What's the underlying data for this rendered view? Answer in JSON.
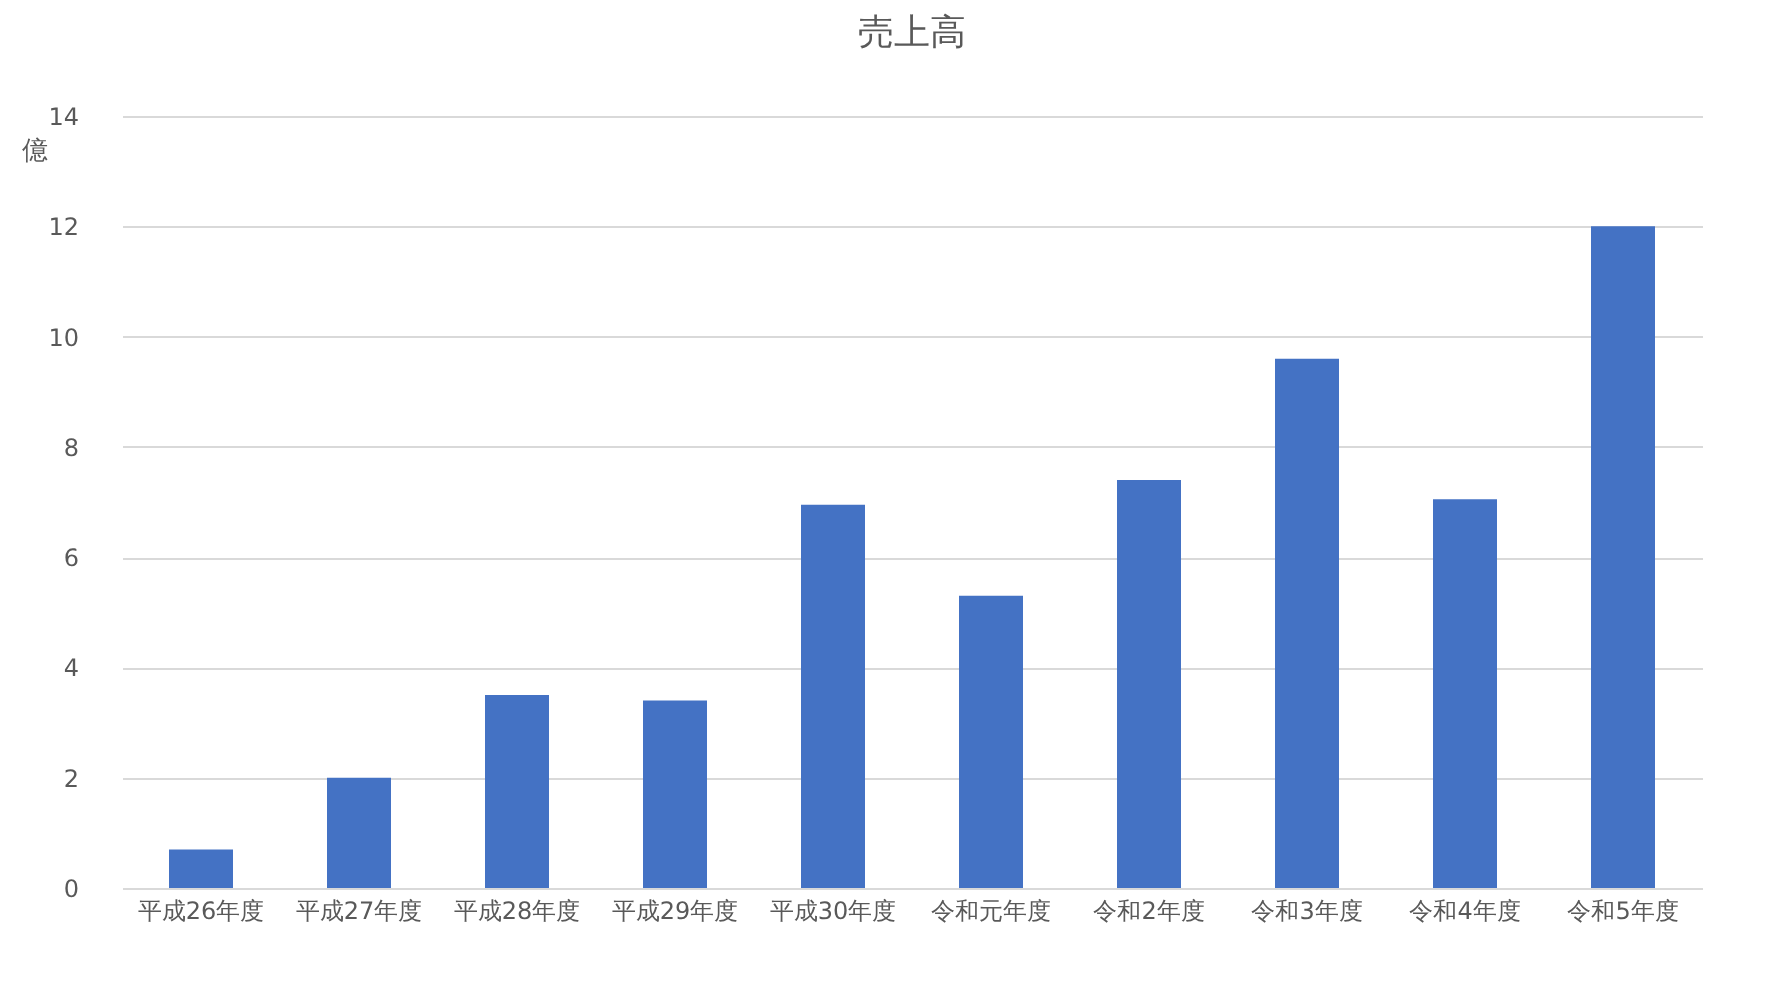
{
  "chart_data": {
    "type": "bar",
    "title": "売上高",
    "ylabel": "億",
    "categories": [
      "平成26年度",
      "平成27年度",
      "平成28年度",
      "平成29年度",
      "平成30年度",
      "令和元年度",
      "令和2年度",
      "令和3年度",
      "令和4年度",
      "令和5年度"
    ],
    "values": [
      0.7,
      2.0,
      3.5,
      3.4,
      6.95,
      5.3,
      7.4,
      9.6,
      7.05,
      12.0
    ],
    "color": "#4472c4",
    "ylim": [
      0,
      14
    ],
    "yticks": [
      0,
      2,
      4,
      6,
      8,
      10,
      12,
      14
    ],
    "grid": "y"
  }
}
